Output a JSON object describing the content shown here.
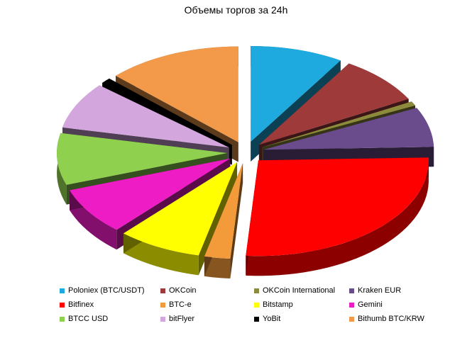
{
  "chart_data": {
    "type": "pie",
    "title": "Объемы торгов за 24h",
    "exploded": true,
    "three_d": true,
    "legend_position": "bottom",
    "series": [
      {
        "name": "Poloniex (BTC/USDT)",
        "value": 8.3,
        "color": "#1FAADF"
      },
      {
        "name": "OKCoin",
        "value": 7.7,
        "color": "#9E3A3A"
      },
      {
        "name": "OKCoin  International",
        "value": 0.7,
        "color": "#8C8A3C"
      },
      {
        "name": "Kraken  EUR",
        "value": 6.3,
        "color": "#6A4C8C"
      },
      {
        "name": "Bitfinex",
        "value": 25.0,
        "color": "#FF0000"
      },
      {
        "name": "BTC-e",
        "value": 2.3,
        "color": "#F39A3A"
      },
      {
        "name": "Bitstamp",
        "value": 7.5,
        "color": "#FFFF00"
      },
      {
        "name": "Gemini",
        "value": 7.5,
        "color": "#EE1CC4"
      },
      {
        "name": "BTCC  USD",
        "value": 8.2,
        "color": "#8FD14F"
      },
      {
        "name": "bitFlyer",
        "value": 7.4,
        "color": "#D3A7DE"
      },
      {
        "name": "YoBit",
        "value": 0.9,
        "color": "#000000"
      },
      {
        "name": "Bithumb BTC/KRW",
        "value": 12.0,
        "color": "#F39A4A"
      }
    ]
  }
}
